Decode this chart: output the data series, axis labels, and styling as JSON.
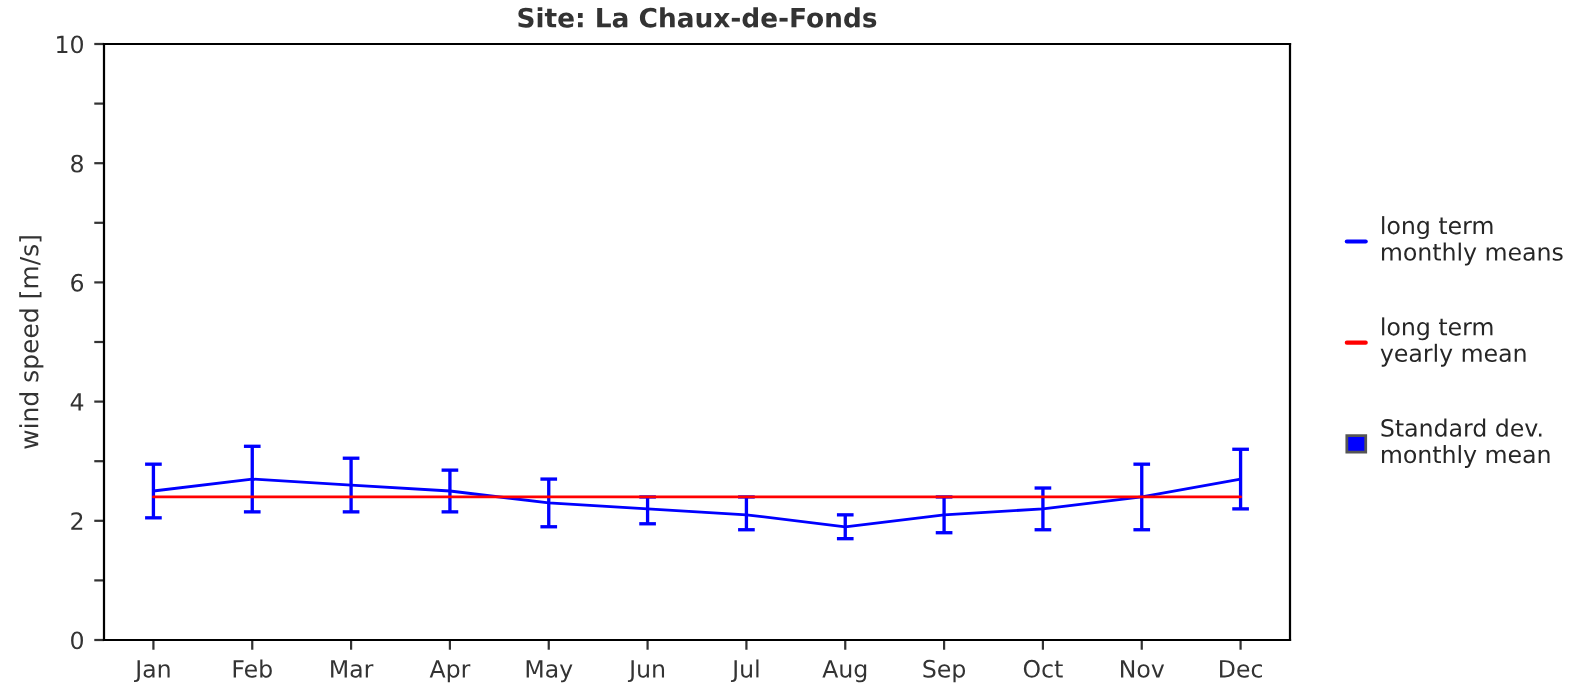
{
  "chart_data": {
    "type": "line",
    "title": "Site: La Chaux-de-Fonds",
    "ylabel": "wind speed [m/s]",
    "categories": [
      "Jan",
      "Feb",
      "Mar",
      "Apr",
      "May",
      "Jun",
      "Jul",
      "Aug",
      "Sep",
      "Oct",
      "Nov",
      "Dec"
    ],
    "series": [
      {
        "name": "long term\nmonthly means",
        "color": "#0000ff",
        "values": [
          2.5,
          2.7,
          2.6,
          2.5,
          2.3,
          2.2,
          2.1,
          1.9,
          2.1,
          2.2,
          2.4,
          2.7
        ],
        "errors": [
          [
            2.05,
            2.95
          ],
          [
            2.15,
            3.25
          ],
          [
            2.15,
            3.05
          ],
          [
            2.15,
            2.85
          ],
          [
            1.9,
            2.7
          ],
          [
            1.95,
            2.4
          ],
          [
            1.85,
            2.4
          ],
          [
            1.7,
            2.1
          ],
          [
            1.8,
            2.4
          ],
          [
            1.85,
            2.55
          ],
          [
            1.85,
            2.95
          ],
          [
            2.2,
            3.2
          ]
        ]
      },
      {
        "name": "long term\nyearly mean",
        "color": "#ff0000",
        "values": [
          2.4,
          2.4,
          2.4,
          2.4,
          2.4,
          2.4,
          2.4,
          2.4,
          2.4,
          2.4,
          2.4,
          2.4
        ]
      }
    ],
    "annotations": [
      "Standard dev.\nmonthly mean"
    ],
    "ylim": [
      0,
      10
    ],
    "yticks": [
      0,
      {
        "value": 1,
        "label": null
      },
      2,
      {
        "value": 3,
        "label": null
      },
      4,
      {
        "value": 5,
        "label": null
      },
      6,
      {
        "value": 7,
        "label": null
      },
      8,
      {
        "value": 9,
        "label": null
      },
      10
    ],
    "grid": false,
    "legend": "right"
  }
}
